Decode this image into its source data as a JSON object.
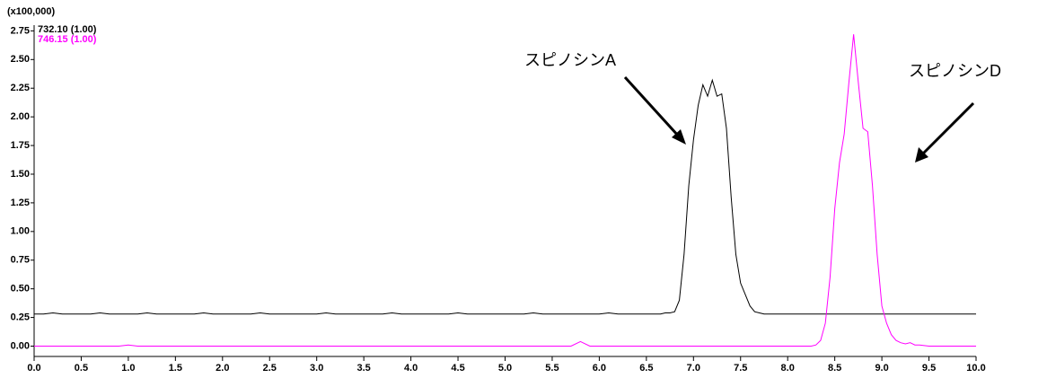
{
  "chart_data": {
    "type": "line",
    "y_unit_label": "(x100,000)",
    "xlim": [
      0,
      10
    ],
    "ylim": [
      -0.09,
      2.8
    ],
    "xticks": [
      {
        "value": 0,
        "label": "0.0"
      },
      {
        "value": 0.5,
        "label": "0.5"
      },
      {
        "value": 1,
        "label": "1.0"
      },
      {
        "value": 1.5,
        "label": "1.5"
      },
      {
        "value": 2,
        "label": "2.0"
      },
      {
        "value": 2.5,
        "label": "2.5"
      },
      {
        "value": 3,
        "label": "3.0"
      },
      {
        "value": 3.5,
        "label": "3.5"
      },
      {
        "value": 4,
        "label": "4.0"
      },
      {
        "value": 4.5,
        "label": "4.5"
      },
      {
        "value": 5,
        "label": "5.0"
      },
      {
        "value": 5.5,
        "label": "5.5"
      },
      {
        "value": 6,
        "label": "6.0"
      },
      {
        "value": 6.5,
        "label": "6.5"
      },
      {
        "value": 7,
        "label": "7.0"
      },
      {
        "value": 7.5,
        "label": "7.5"
      },
      {
        "value": 8,
        "label": "8.0"
      },
      {
        "value": 8.5,
        "label": "8.5"
      },
      {
        "value": 9,
        "label": "9.0"
      },
      {
        "value": 9.5,
        "label": "9.5"
      },
      {
        "value": 10,
        "label": "10.0"
      }
    ],
    "yticks": [
      {
        "value": 0,
        "label": "0.00"
      },
      {
        "value": 0.25,
        "label": "0.25"
      },
      {
        "value": 0.5,
        "label": "0.50"
      },
      {
        "value": 0.75,
        "label": "0.75"
      },
      {
        "value": 1,
        "label": "1.00"
      },
      {
        "value": 1.25,
        "label": "1.25"
      },
      {
        "value": 1.5,
        "label": "1.50"
      },
      {
        "value": 1.75,
        "label": "1.75"
      },
      {
        "value": 2,
        "label": "2.00"
      },
      {
        "value": 2.25,
        "label": "2.25"
      },
      {
        "value": 2.5,
        "label": "2.50"
      },
      {
        "value": 2.75,
        "label": "2.75"
      }
    ],
    "annotations": [
      "スピノシンA",
      "スピノシンD"
    ],
    "x": [
      0,
      0.1,
      0.2,
      0.3,
      0.4,
      0.5,
      0.6,
      0.7,
      0.8,
      0.9,
      1,
      1.1,
      1.2,
      1.3,
      1.4,
      1.5,
      1.6,
      1.7,
      1.8,
      1.9,
      2,
      2.1,
      2.2,
      2.3,
      2.4,
      2.5,
      2.6,
      2.7,
      2.8,
      2.9,
      3,
      3.1,
      3.2,
      3.3,
      3.4,
      3.5,
      3.6,
      3.7,
      3.8,
      3.9,
      4,
      4.1,
      4.2,
      4.3,
      4.4,
      4.5,
      4.6,
      4.7,
      4.8,
      4.9,
      5,
      5.1,
      5.2,
      5.3,
      5.4,
      5.5,
      5.6,
      5.7,
      5.8,
      5.9,
      6,
      6.1,
      6.2,
      6.3,
      6.4,
      6.5,
      6.6,
      6.65,
      6.7,
      6.75,
      6.8,
      6.85,
      6.9,
      6.95,
      7,
      7.05,
      7.1,
      7.15,
      7.2,
      7.25,
      7.3,
      7.35,
      7.4,
      7.45,
      7.5,
      7.55,
      7.6,
      7.65,
      7.7,
      7.75,
      7.8,
      7.85,
      7.9,
      7.95,
      8,
      8.05,
      8.1,
      8.15,
      8.2,
      8.25,
      8.3,
      8.35,
      8.4,
      8.45,
      8.5,
      8.55,
      8.6,
      8.65,
      8.7,
      8.75,
      8.8,
      8.85,
      8.9,
      8.95,
      9,
      9.05,
      9.1,
      9.15,
      9.2,
      9.25,
      9.3,
      9.35,
      9.4,
      9.5,
      9.6,
      9.7,
      9.8,
      9.9,
      10
    ],
    "series": [
      {
        "name": "732.10 (1.00)",
        "color": "#000000",
        "values": [
          0.28,
          0.28,
          0.29,
          0.28,
          0.28,
          0.28,
          0.28,
          0.29,
          0.28,
          0.28,
          0.28,
          0.28,
          0.29,
          0.28,
          0.28,
          0.28,
          0.28,
          0.28,
          0.29,
          0.28,
          0.28,
          0.28,
          0.28,
          0.28,
          0.29,
          0.28,
          0.28,
          0.28,
          0.28,
          0.28,
          0.28,
          0.29,
          0.28,
          0.28,
          0.28,
          0.28,
          0.28,
          0.28,
          0.29,
          0.28,
          0.28,
          0.28,
          0.28,
          0.28,
          0.28,
          0.29,
          0.28,
          0.28,
          0.28,
          0.28,
          0.28,
          0.28,
          0.28,
          0.29,
          0.28,
          0.28,
          0.28,
          0.28,
          0.28,
          0.28,
          0.28,
          0.29,
          0.28,
          0.28,
          0.28,
          0.28,
          0.28,
          0.28,
          0.29,
          0.29,
          0.3,
          0.4,
          0.8,
          1.4,
          1.8,
          2.1,
          2.28,
          2.18,
          2.32,
          2.18,
          2.2,
          1.9,
          1.3,
          0.8,
          0.55,
          0.45,
          0.35,
          0.3,
          0.29,
          0.28,
          0.28,
          0.28,
          0.28,
          0.28,
          0.28,
          0.28,
          0.28,
          0.28,
          0.28,
          0.28,
          0.28,
          0.28,
          0.28,
          0.28,
          0.28,
          0.28,
          0.28,
          0.28,
          0.28,
          0.28,
          0.28,
          0.28,
          0.28,
          0.28,
          0.28,
          0.28,
          0.28,
          0.28,
          0.28,
          0.28,
          0.28,
          0.28,
          0.28,
          0.28,
          0.28,
          0.28,
          0.28,
          0.28,
          0.28
        ]
      },
      {
        "name": "746.15 (1.00)",
        "color": "#ff00ff",
        "values": [
          0,
          0,
          0,
          0,
          0,
          0,
          0,
          0,
          0,
          0,
          0.01,
          0,
          0,
          0,
          0,
          0,
          0,
          0,
          0,
          0,
          0,
          0,
          0,
          0,
          0,
          0,
          0,
          0,
          0,
          0,
          0,
          0,
          0,
          0,
          0,
          0,
          0,
          0,
          0,
          0,
          0,
          0,
          0,
          0,
          0,
          0,
          0,
          0,
          0,
          0,
          0,
          0,
          0,
          0,
          0,
          0,
          0,
          0,
          0.04,
          0,
          0,
          0,
          0,
          0,
          0,
          0,
          0,
          0,
          0,
          0,
          0,
          0,
          0,
          0,
          0,
          0,
          0,
          0,
          0,
          0,
          0,
          0,
          0,
          0,
          0,
          0,
          0,
          0,
          0,
          0,
          0,
          0,
          0,
          0,
          0,
          0,
          0,
          0,
          0,
          0,
          0.01,
          0.05,
          0.2,
          0.6,
          1.2,
          1.6,
          1.85,
          2.3,
          2.72,
          2.3,
          1.9,
          1.87,
          1.4,
          0.8,
          0.35,
          0.2,
          0.1,
          0.05,
          0.03,
          0.02,
          0.03,
          0.01,
          0.01,
          0,
          0,
          0,
          0,
          0,
          0
        ]
      }
    ]
  }
}
